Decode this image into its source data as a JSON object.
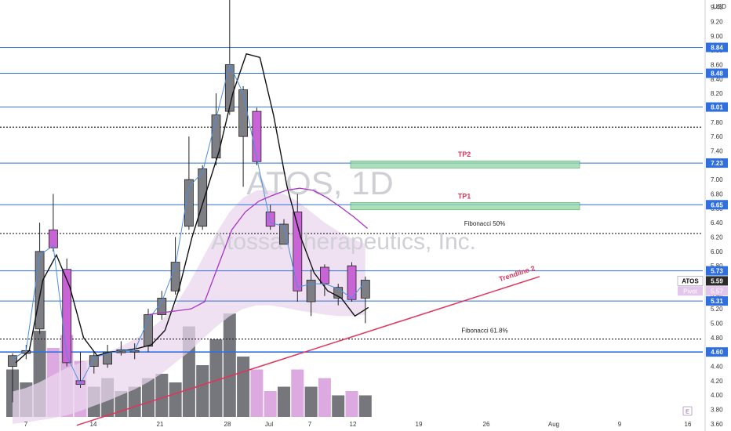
{
  "chart_data": {
    "type": "candlestick",
    "title": "ATOS, 1D",
    "subtitle": "Atossa Therapeutics, Inc.",
    "ylim": [
      3.5,
      9.5
    ],
    "yunit": "USD",
    "y_ticks": [
      "3.60",
      "3.80",
      "4.00",
      "4.20",
      "4.40",
      "4.60",
      "4.80",
      "5.00",
      "5.20",
      "5.40",
      "5.60",
      "5.80",
      "6.00",
      "6.20",
      "6.40",
      "6.60",
      "6.80",
      "7.00",
      "7.20",
      "7.40",
      "7.60",
      "7.80",
      "8.00",
      "8.20",
      "8.40",
      "8.60",
      "8.80",
      "9.00",
      "9.20",
      "9.40"
    ],
    "x_labels": [
      "7",
      "14",
      "21",
      "28",
      "Jul",
      "7",
      "12",
      "19",
      "26",
      "Aug",
      "9",
      "16"
    ],
    "candles": [
      {
        "o": 4.4,
        "h": 4.58,
        "l": 3.9,
        "c": 4.55,
        "color": "gray"
      },
      {
        "o": 4.58,
        "h": 4.7,
        "l": 4.5,
        "c": 4.62,
        "color": "gray"
      },
      {
        "o": 4.92,
        "h": 6.4,
        "l": 4.85,
        "c": 6.0,
        "color": "gray"
      },
      {
        "o": 6.3,
        "h": 6.8,
        "l": 6.0,
        "c": 6.05,
        "color": "purple"
      },
      {
        "o": 5.75,
        "h": 5.9,
        "l": 4.4,
        "c": 4.45,
        "color": "purple"
      },
      {
        "o": 4.2,
        "h": 4.6,
        "l": 4.1,
        "c": 4.15,
        "color": "purple"
      },
      {
        "o": 4.4,
        "h": 4.6,
        "l": 4.3,
        "c": 4.55,
        "color": "gray"
      },
      {
        "o": 4.43,
        "h": 4.7,
        "l": 4.38,
        "c": 4.6,
        "color": "gray"
      },
      {
        "o": 4.59,
        "h": 4.75,
        "l": 4.55,
        "c": 4.63,
        "color": "gray"
      },
      {
        "o": 4.6,
        "h": 4.72,
        "l": 4.5,
        "c": 4.62,
        "color": "gray"
      },
      {
        "o": 4.68,
        "h": 5.2,
        "l": 4.6,
        "c": 5.12,
        "color": "gray"
      },
      {
        "o": 5.12,
        "h": 5.45,
        "l": 5.05,
        "c": 5.35,
        "color": "gray"
      },
      {
        "o": 5.45,
        "h": 6.2,
        "l": 5.4,
        "c": 5.85,
        "color": "gray"
      },
      {
        "o": 6.35,
        "h": 7.6,
        "l": 6.3,
        "c": 7.0,
        "color": "gray"
      },
      {
        "o": 6.35,
        "h": 7.2,
        "l": 6.3,
        "c": 7.15,
        "color": "gray"
      },
      {
        "o": 7.3,
        "h": 8.2,
        "l": 7.2,
        "c": 7.9,
        "color": "gray"
      },
      {
        "o": 7.95,
        "h": 9.55,
        "l": 7.9,
        "c": 8.6,
        "color": "gray"
      },
      {
        "o": 7.6,
        "h": 8.3,
        "l": 6.9,
        "c": 8.25,
        "color": "gray"
      },
      {
        "o": 7.95,
        "h": 8.0,
        "l": 7.2,
        "c": 7.25,
        "color": "purple"
      },
      {
        "o": 6.55,
        "h": 6.65,
        "l": 6.3,
        "c": 6.35,
        "color": "purple"
      },
      {
        "o": 6.1,
        "h": 6.45,
        "l": 6.1,
        "c": 6.38,
        "color": "gray"
      },
      {
        "o": 6.55,
        "h": 6.8,
        "l": 5.3,
        "c": 5.45,
        "color": "purple"
      },
      {
        "o": 5.3,
        "h": 5.75,
        "l": 5.1,
        "c": 5.6,
        "color": "gray"
      },
      {
        "o": 5.78,
        "h": 5.82,
        "l": 5.38,
        "c": 5.55,
        "color": "purple"
      },
      {
        "o": 5.35,
        "h": 5.55,
        "l": 5.25,
        "c": 5.5,
        "color": "gray"
      },
      {
        "o": 5.8,
        "h": 5.85,
        "l": 5.3,
        "c": 5.33,
        "color": "purple"
      },
      {
        "o": 5.35,
        "h": 5.65,
        "l": 5.0,
        "c": 5.6,
        "color": "gray"
      }
    ],
    "volumes": [
      {
        "v": 0.55,
        "color": "gray"
      },
      {
        "v": 0.4,
        "color": "gray"
      },
      {
        "v": 1.0,
        "color": "gray"
      },
      {
        "v": 0.8,
        "color": "purple"
      },
      {
        "v": 0.95,
        "color": "purple"
      },
      {
        "v": 0.65,
        "color": "purple"
      },
      {
        "v": 0.35,
        "color": "gray"
      },
      {
        "v": 0.45,
        "color": "gray"
      },
      {
        "v": 0.3,
        "color": "gray"
      },
      {
        "v": 0.35,
        "color": "gray"
      },
      {
        "v": 0.45,
        "color": "gray"
      },
      {
        "v": 0.5,
        "color": "gray"
      },
      {
        "v": 0.4,
        "color": "gray"
      },
      {
        "v": 1.05,
        "color": "gray"
      },
      {
        "v": 0.6,
        "color": "gray"
      },
      {
        "v": 0.9,
        "color": "gray"
      },
      {
        "v": 1.2,
        "color": "gray"
      },
      {
        "v": 0.7,
        "color": "gray"
      },
      {
        "v": 0.55,
        "color": "purple"
      },
      {
        "v": 0.3,
        "color": "purple"
      },
      {
        "v": 0.35,
        "color": "gray"
      },
      {
        "v": 0.55,
        "color": "purple"
      },
      {
        "v": 0.35,
        "color": "gray"
      },
      {
        "v": 0.45,
        "color": "purple"
      },
      {
        "v": 0.25,
        "color": "gray"
      },
      {
        "v": 0.3,
        "color": "purple"
      },
      {
        "v": 0.25,
        "color": "gray"
      }
    ],
    "horizontal_levels": [
      {
        "value": 8.84,
        "label": "8.84",
        "style": "solid"
      },
      {
        "value": 8.48,
        "label": "8.48",
        "style": "solid"
      },
      {
        "value": 8.01,
        "label": "8.01",
        "style": "solid"
      },
      {
        "value": 7.23,
        "label": "7.23",
        "style": "solid"
      },
      {
        "value": 6.65,
        "label": "6.65",
        "style": "solid"
      },
      {
        "value": 5.73,
        "label": "5.73",
        "style": "solid"
      },
      {
        "value": 5.31,
        "label": "5.31",
        "style": "solid"
      },
      {
        "value": 4.6,
        "label": "4.60",
        "style": "solid-thick"
      },
      {
        "value": 7.73,
        "label": "",
        "style": "dotted"
      },
      {
        "value": 6.25,
        "label": "",
        "style": "dotted"
      },
      {
        "value": 4.78,
        "label": "",
        "style": "dotted"
      }
    ],
    "annotations": [
      {
        "text": "TP2",
        "color": "#e0355b"
      },
      {
        "text": "TP1",
        "color": "#e0355b"
      },
      {
        "text": "Fibonacci 50%",
        "color": "#222222"
      },
      {
        "text": "Fibonacci 61.8%",
        "color": "#222222"
      },
      {
        "text": "Trendline 2",
        "color": "#e0355b"
      }
    ],
    "last_price": {
      "label": "ATOS",
      "value": "5.59"
    },
    "pivot": {
      "label": "Pivot",
      "value": "5.57"
    },
    "colors": {
      "up": "#7e7e85",
      "down": "#c964d6",
      "level": "#2f6fe0",
      "trend": "#e0355b",
      "tp_fill": "#8fd6a5"
    }
  }
}
